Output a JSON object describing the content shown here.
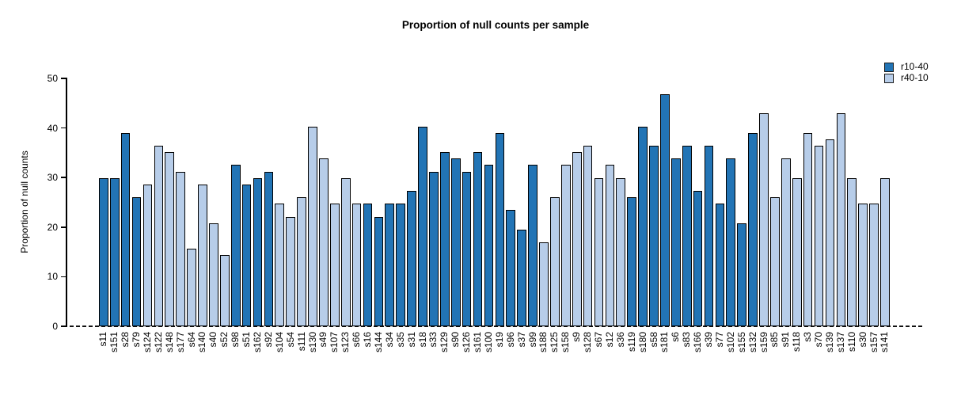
{
  "chart_data": {
    "type": "bar",
    "title": "Proportion of null counts per sample",
    "xlabel": "",
    "ylabel": "Proportion of null counts",
    "ylim": [
      0,
      50
    ],
    "yticks": [
      0,
      10,
      20,
      30,
      40,
      50
    ],
    "grid": false,
    "legend_position": "top-right",
    "zero_line_style": "dashed",
    "series": [
      {
        "name": "r10-40",
        "color": "#2274B5"
      },
      {
        "name": "r40-10",
        "color": "#B7CDE9"
      }
    ],
    "bar_border_color": "#000000",
    "bars": [
      {
        "label": "s11",
        "value": 29.9,
        "series": "r10-40"
      },
      {
        "label": "s151",
        "value": 29.9,
        "series": "r10-40"
      },
      {
        "label": "s28",
        "value": 39.0,
        "series": "r10-40"
      },
      {
        "label": "s79",
        "value": 26.0,
        "series": "r10-40"
      },
      {
        "label": "s124",
        "value": 28.6,
        "series": "r40-10"
      },
      {
        "label": "s122",
        "value": 36.4,
        "series": "r40-10"
      },
      {
        "label": "s148",
        "value": 35.1,
        "series": "r40-10"
      },
      {
        "label": "s177",
        "value": 31.2,
        "series": "r40-10"
      },
      {
        "label": "s64",
        "value": 15.6,
        "series": "r40-10"
      },
      {
        "label": "s140",
        "value": 28.6,
        "series": "r40-10"
      },
      {
        "label": "s40",
        "value": 20.8,
        "series": "r40-10"
      },
      {
        "label": "s52",
        "value": 14.3,
        "series": "r40-10"
      },
      {
        "label": "s98",
        "value": 32.5,
        "series": "r10-40"
      },
      {
        "label": "s51",
        "value": 28.6,
        "series": "r10-40"
      },
      {
        "label": "s162",
        "value": 29.9,
        "series": "r10-40"
      },
      {
        "label": "s92",
        "value": 31.2,
        "series": "r10-40"
      },
      {
        "label": "s104",
        "value": 24.7,
        "series": "r40-10"
      },
      {
        "label": "s54",
        "value": 22.1,
        "series": "r40-10"
      },
      {
        "label": "s111",
        "value": 26.0,
        "series": "r40-10"
      },
      {
        "label": "s130",
        "value": 40.3,
        "series": "r40-10"
      },
      {
        "label": "s49",
        "value": 33.8,
        "series": "r40-10"
      },
      {
        "label": "s107",
        "value": 24.7,
        "series": "r40-10"
      },
      {
        "label": "s123",
        "value": 29.9,
        "series": "r40-10"
      },
      {
        "label": "s66",
        "value": 24.7,
        "series": "r40-10"
      },
      {
        "label": "s16",
        "value": 24.7,
        "series": "r10-40"
      },
      {
        "label": "s144",
        "value": 22.1,
        "series": "r10-40"
      },
      {
        "label": "s34",
        "value": 24.7,
        "series": "r10-40"
      },
      {
        "label": "s35",
        "value": 24.7,
        "series": "r10-40"
      },
      {
        "label": "s31",
        "value": 27.3,
        "series": "r10-40"
      },
      {
        "label": "s18",
        "value": 40.3,
        "series": "r10-40"
      },
      {
        "label": "s33",
        "value": 31.2,
        "series": "r10-40"
      },
      {
        "label": "s129",
        "value": 35.1,
        "series": "r10-40"
      },
      {
        "label": "s90",
        "value": 33.8,
        "series": "r10-40"
      },
      {
        "label": "s126",
        "value": 31.2,
        "series": "r10-40"
      },
      {
        "label": "s161",
        "value": 35.1,
        "series": "r10-40"
      },
      {
        "label": "s100",
        "value": 32.5,
        "series": "r10-40"
      },
      {
        "label": "s19",
        "value": 39.0,
        "series": "r10-40"
      },
      {
        "label": "s96",
        "value": 23.4,
        "series": "r10-40"
      },
      {
        "label": "s37",
        "value": 19.5,
        "series": "r10-40"
      },
      {
        "label": "s99",
        "value": 32.5,
        "series": "r10-40"
      },
      {
        "label": "s188",
        "value": 16.9,
        "series": "r40-10"
      },
      {
        "label": "s125",
        "value": 26.0,
        "series": "r40-10"
      },
      {
        "label": "s158",
        "value": 32.5,
        "series": "r40-10"
      },
      {
        "label": "s9",
        "value": 35.1,
        "series": "r40-10"
      },
      {
        "label": "s128",
        "value": 36.4,
        "series": "r40-10"
      },
      {
        "label": "s67",
        "value": 29.9,
        "series": "r40-10"
      },
      {
        "label": "s12",
        "value": 32.5,
        "series": "r40-10"
      },
      {
        "label": "s36",
        "value": 29.9,
        "series": "r40-10"
      },
      {
        "label": "s119",
        "value": 26.0,
        "series": "r10-40"
      },
      {
        "label": "s180",
        "value": 40.3,
        "series": "r10-40"
      },
      {
        "label": "s58",
        "value": 36.4,
        "series": "r10-40"
      },
      {
        "label": "s181",
        "value": 46.8,
        "series": "r10-40"
      },
      {
        "label": "s6",
        "value": 33.8,
        "series": "r10-40"
      },
      {
        "label": "s83",
        "value": 36.4,
        "series": "r10-40"
      },
      {
        "label": "s166",
        "value": 27.3,
        "series": "r10-40"
      },
      {
        "label": "s39",
        "value": 36.4,
        "series": "r10-40"
      },
      {
        "label": "s77",
        "value": 24.7,
        "series": "r10-40"
      },
      {
        "label": "s102",
        "value": 33.8,
        "series": "r10-40"
      },
      {
        "label": "s155",
        "value": 20.8,
        "series": "r10-40"
      },
      {
        "label": "s132",
        "value": 39.0,
        "series": "r10-40"
      },
      {
        "label": "s159",
        "value": 42.9,
        "series": "r40-10"
      },
      {
        "label": "s85",
        "value": 26.0,
        "series": "r40-10"
      },
      {
        "label": "s91",
        "value": 33.8,
        "series": "r40-10"
      },
      {
        "label": "s118",
        "value": 29.9,
        "series": "r40-10"
      },
      {
        "label": "s3",
        "value": 39.0,
        "series": "r40-10"
      },
      {
        "label": "s70",
        "value": 36.4,
        "series": "r40-10"
      },
      {
        "label": "s139",
        "value": 37.7,
        "series": "r40-10"
      },
      {
        "label": "s137",
        "value": 42.9,
        "series": "r40-10"
      },
      {
        "label": "s110",
        "value": 29.9,
        "series": "r40-10"
      },
      {
        "label": "s30",
        "value": 24.7,
        "series": "r40-10"
      },
      {
        "label": "s157",
        "value": 24.7,
        "series": "r40-10"
      },
      {
        "label": "s141",
        "value": 29.9,
        "series": "r40-10"
      }
    ]
  }
}
